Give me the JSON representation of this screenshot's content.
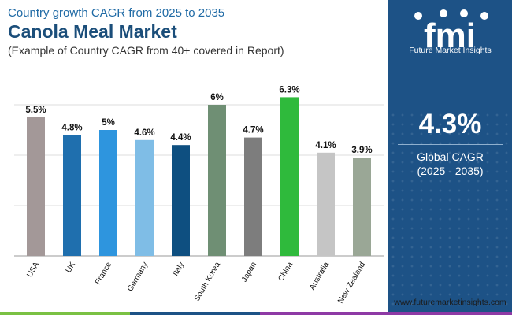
{
  "header": {
    "kicker": "Country growth CAGR from 2025 to 2035",
    "title": "Canola Meal Market",
    "subtitle": "(Example of Country CAGR from 40+ covered in Report)"
  },
  "sidebar": {
    "logo_text": "fmi",
    "brand": "Future Market Insights",
    "global_value": "4.3%",
    "global_label": "Global CAGR",
    "global_period": "(2025 - 2035)",
    "website": "www.futuremarketinsights.com",
    "background_color": "#1d5286"
  },
  "bottom_bar_colors": [
    "#7ac143",
    "#1d5286",
    "#8e3aa5"
  ],
  "chart_data": {
    "type": "bar",
    "categories": [
      "USA",
      "UK",
      "France",
      "Germany",
      "Italy",
      "South Korea",
      "Japan",
      "China",
      "Australia",
      "New Zealand"
    ],
    "values": [
      5.5,
      4.8,
      5.0,
      4.6,
      4.4,
      6.0,
      4.7,
      6.3,
      4.1,
      3.9
    ],
    "value_labels": [
      "5.5%",
      "4.8%",
      "5%",
      "4.6%",
      "4.4%",
      "6%",
      "4.7%",
      "6.3%",
      "4.1%",
      "3.9%"
    ],
    "colors": [
      "#a39898",
      "#1f6fae",
      "#2e95de",
      "#7fbde6",
      "#0e4f80",
      "#6f8f74",
      "#7d7d7d",
      "#2fba3c",
      "#c5c5c5",
      "#9aa796"
    ],
    "ylim": [
      0,
      6
    ],
    "grid": true,
    "legend": "none"
  }
}
